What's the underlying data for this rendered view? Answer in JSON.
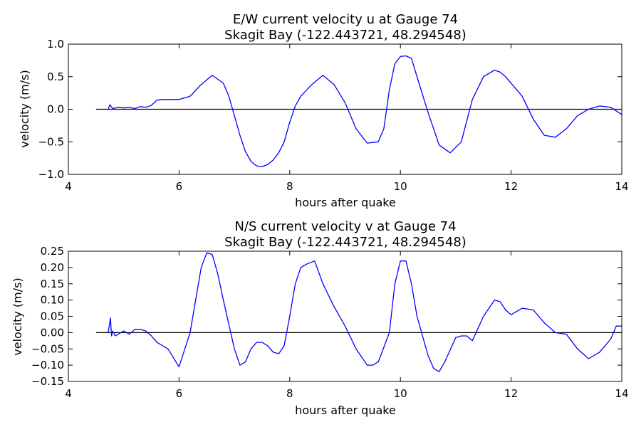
{
  "chart_data": [
    {
      "type": "line",
      "title": "E/W current velocity u at Gauge 74",
      "subtitle": "Skagit Bay  (-122.443721, 48.294548)",
      "xlabel": "hours after quake",
      "ylabel": "velocity (m/s)",
      "xlim": [
        4,
        14
      ],
      "ylim": [
        -1.0,
        1.0
      ],
      "xticks": [
        "4",
        "6",
        "8",
        "10",
        "12",
        "14"
      ],
      "yticks": [
        "−1.0",
        "−0.5",
        "0.0",
        "0.5",
        "1.0"
      ],
      "grid": false,
      "reference_line": {
        "y": 0.0,
        "x_range": [
          4.5,
          14
        ],
        "color": "#000000"
      },
      "series_color": "#0000ff",
      "x": [
        4.72,
        4.75,
        4.8,
        4.9,
        5.0,
        5.1,
        5.2,
        5.3,
        5.4,
        5.5,
        5.6,
        5.7,
        5.8,
        6.0,
        6.2,
        6.4,
        6.6,
        6.8,
        6.9,
        7.0,
        7.1,
        7.2,
        7.3,
        7.4,
        7.5,
        7.6,
        7.7,
        7.8,
        7.9,
        8.0,
        8.1,
        8.2,
        8.4,
        8.6,
        8.8,
        9.0,
        9.2,
        9.4,
        9.6,
        9.7,
        9.8,
        9.9,
        10.0,
        10.1,
        10.2,
        10.3,
        10.5,
        10.7,
        10.9,
        11.1,
        11.3,
        11.5,
        11.7,
        11.8,
        11.9,
        12.0,
        12.2,
        12.4,
        12.6,
        12.8,
        13.0,
        13.2,
        13.4,
        13.6,
        13.8,
        14.0
      ],
      "values": [
        0.0,
        0.07,
        0.01,
        0.03,
        0.02,
        0.03,
        0.01,
        0.04,
        0.03,
        0.06,
        0.14,
        0.15,
        0.15,
        0.15,
        0.2,
        0.38,
        0.52,
        0.4,
        0.2,
        -0.1,
        -0.4,
        -0.65,
        -0.8,
        -0.87,
        -0.88,
        -0.85,
        -0.78,
        -0.67,
        -0.5,
        -0.2,
        0.05,
        0.2,
        0.38,
        0.52,
        0.38,
        0.1,
        -0.3,
        -0.52,
        -0.5,
        -0.3,
        0.3,
        0.7,
        0.81,
        0.82,
        0.78,
        0.5,
        -0.05,
        -0.55,
        -0.67,
        -0.5,
        0.15,
        0.5,
        0.6,
        0.57,
        0.5,
        0.4,
        0.2,
        -0.15,
        -0.4,
        -0.43,
        -0.3,
        -0.1,
        0.0,
        0.05,
        0.03,
        -0.08
      ]
    },
    {
      "type": "line",
      "title": "N/S current velocity v at Gauge 74",
      "subtitle": "Skagit Bay  (-122.443721, 48.294548)",
      "xlabel": "hours after quake",
      "ylabel": "velocity (m/s)",
      "xlim": [
        4,
        14
      ],
      "ylim": [
        -0.15,
        0.25
      ],
      "xticks": [
        "4",
        "6",
        "8",
        "10",
        "12",
        "14"
      ],
      "yticks": [
        "−0.15",
        "−0.10",
        "−0.05",
        "0.00",
        "0.05",
        "0.10",
        "0.15",
        "0.20",
        "0.25"
      ],
      "grid": false,
      "reference_line": {
        "y": 0.0,
        "x_range": [
          4.5,
          14
        ],
        "color": "#000000"
      },
      "series_color": "#0000ff",
      "x": [
        4.72,
        4.76,
        4.78,
        4.8,
        4.85,
        4.9,
        5.0,
        5.1,
        5.2,
        5.3,
        5.4,
        5.5,
        5.6,
        5.8,
        6.0,
        6.2,
        6.4,
        6.5,
        6.6,
        6.7,
        6.8,
        7.0,
        7.1,
        7.2,
        7.3,
        7.4,
        7.5,
        7.6,
        7.7,
        7.8,
        7.9,
        8.0,
        8.1,
        8.2,
        8.3,
        8.45,
        8.6,
        8.8,
        9.0,
        9.2,
        9.4,
        9.5,
        9.6,
        9.8,
        9.9,
        10.0,
        10.1,
        10.2,
        10.3,
        10.5,
        10.6,
        10.7,
        10.8,
        11.0,
        11.1,
        11.2,
        11.3,
        11.5,
        11.7,
        11.8,
        11.9,
        12.0,
        12.2,
        12.4,
        12.6,
        12.8,
        13.0,
        13.2,
        13.4,
        13.6,
        13.8,
        13.9,
        14.0
      ],
      "values": [
        0.0,
        0.045,
        -0.01,
        0.005,
        -0.01,
        -0.005,
        0.005,
        -0.005,
        0.01,
        0.01,
        0.005,
        -0.01,
        -0.03,
        -0.05,
        -0.105,
        0.0,
        0.2,
        0.245,
        0.24,
        0.18,
        0.1,
        -0.05,
        -0.1,
        -0.09,
        -0.05,
        -0.03,
        -0.03,
        -0.04,
        -0.06,
        -0.065,
        -0.04,
        0.05,
        0.15,
        0.2,
        0.21,
        0.22,
        0.15,
        0.08,
        0.02,
        -0.05,
        -0.1,
        -0.1,
        -0.09,
        0.0,
        0.15,
        0.22,
        0.22,
        0.15,
        0.05,
        -0.07,
        -0.11,
        -0.12,
        -0.09,
        -0.015,
        -0.01,
        -0.01,
        -0.025,
        0.05,
        0.1,
        0.095,
        0.07,
        0.055,
        0.075,
        0.07,
        0.03,
        0.0,
        -0.005,
        -0.05,
        -0.08,
        -0.06,
        -0.02,
        0.02,
        0.02
      ]
    }
  ]
}
